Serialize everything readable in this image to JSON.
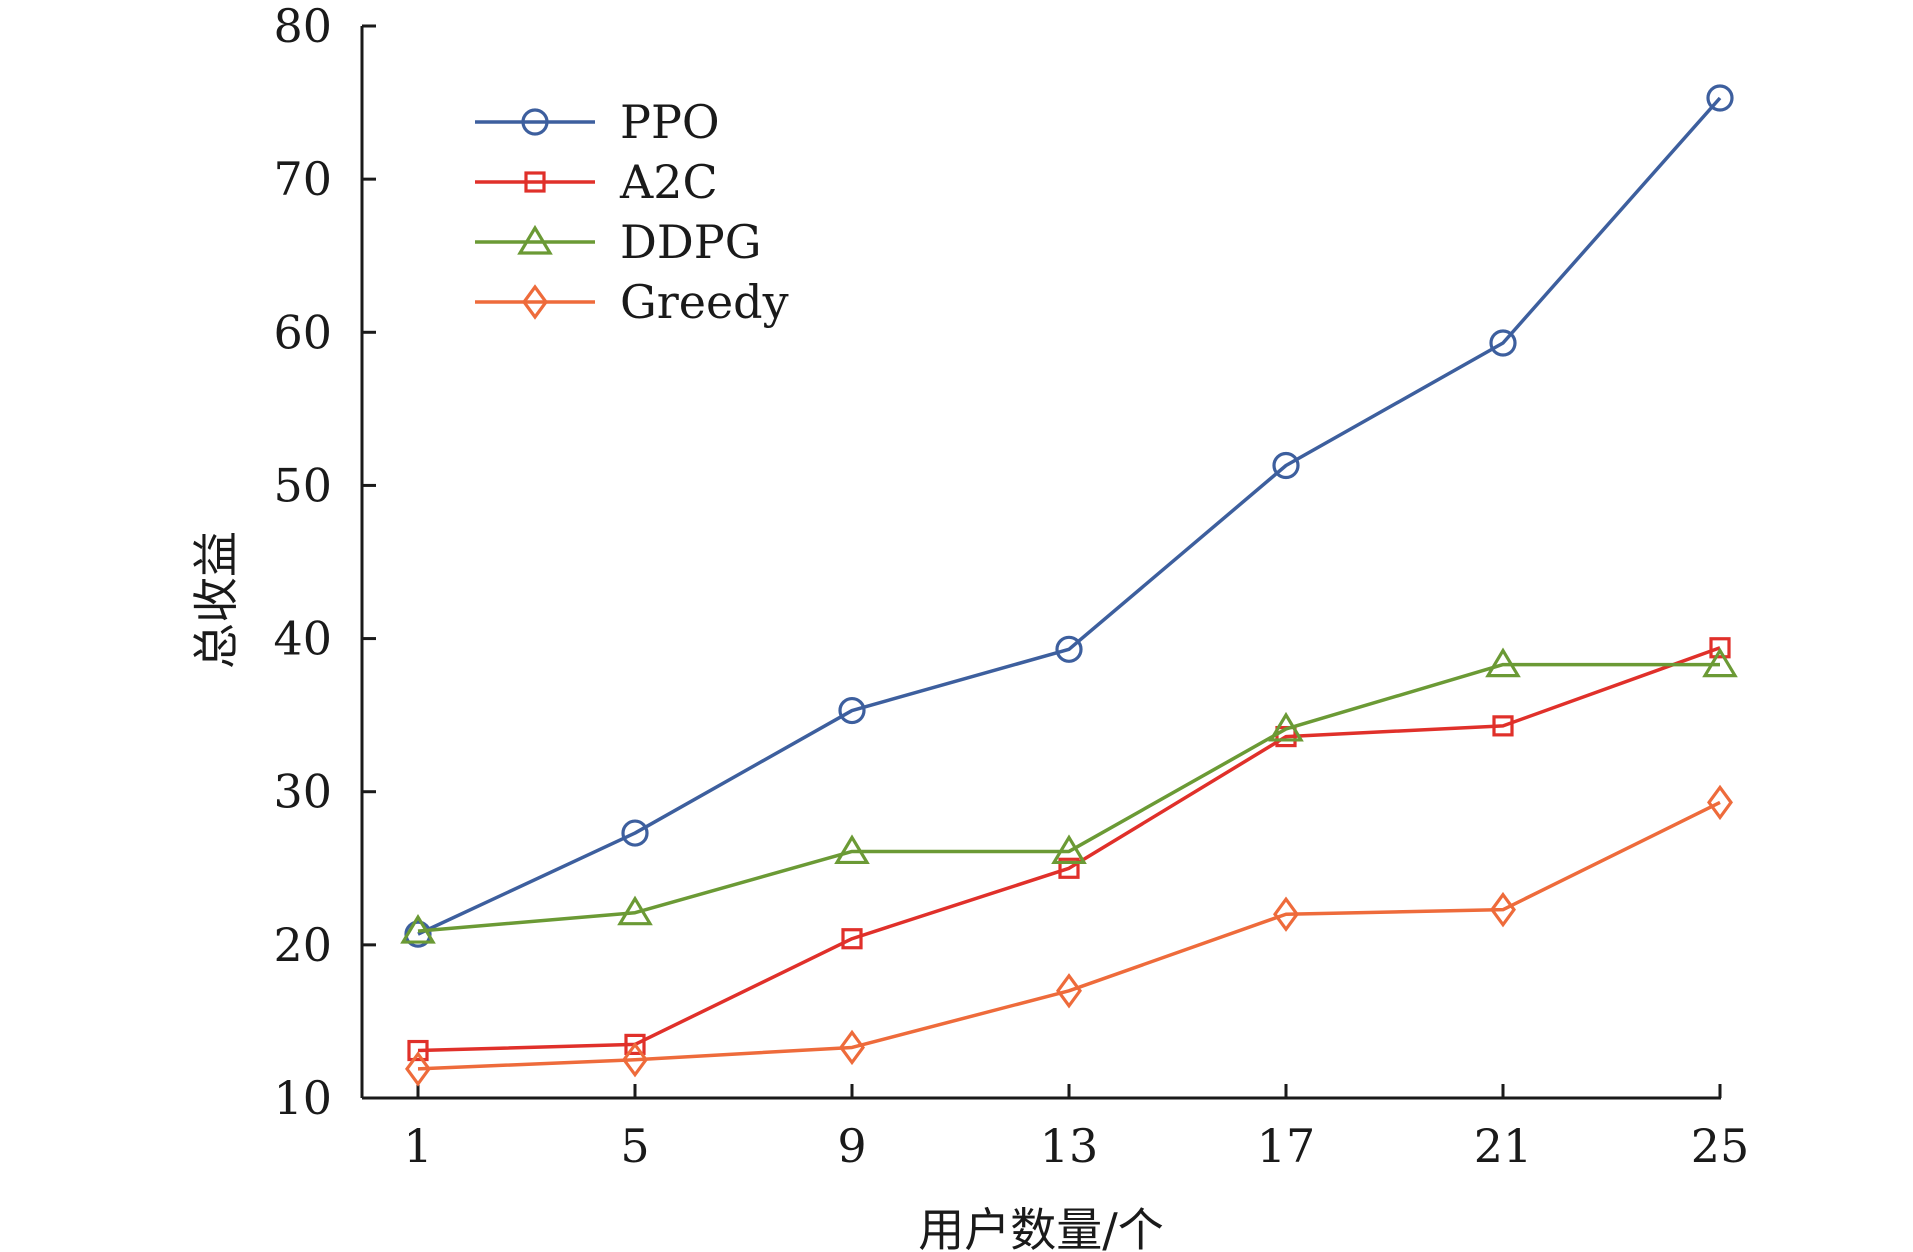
{
  "chart_data": {
    "type": "line",
    "title": "",
    "xlabel": "用户数量/个",
    "ylabel": "总收益",
    "x": [
      1,
      5,
      9,
      13,
      17,
      21,
      25
    ],
    "xticks": [
      "1",
      "5",
      "9",
      "13",
      "17",
      "21",
      "25"
    ],
    "ylim": [
      10,
      80
    ],
    "yticks": [
      "10",
      "20",
      "30",
      "40",
      "50",
      "60",
      "70",
      "80"
    ],
    "grid": false,
    "legend_position": "top-left",
    "series": [
      {
        "name": "PPO",
        "marker": "circle",
        "color": "#3d5f9e",
        "values": [
          20.7,
          27.3,
          35.3,
          39.3,
          51.3,
          59.3,
          75.3
        ]
      },
      {
        "name": "A2C",
        "marker": "square",
        "color": "#e0302a",
        "values": [
          13.1,
          13.5,
          20.4,
          25.0,
          33.6,
          34.3,
          39.4
        ]
      },
      {
        "name": "DDPG",
        "marker": "triangle",
        "color": "#6b9a35",
        "values": [
          20.9,
          22.1,
          26.1,
          26.1,
          34.1,
          38.3,
          38.3
        ]
      },
      {
        "name": "Greedy",
        "marker": "diamond",
        "color": "#ee6b3b",
        "values": [
          11.9,
          12.5,
          13.3,
          17.0,
          22.0,
          22.3,
          29.3
        ]
      }
    ]
  }
}
